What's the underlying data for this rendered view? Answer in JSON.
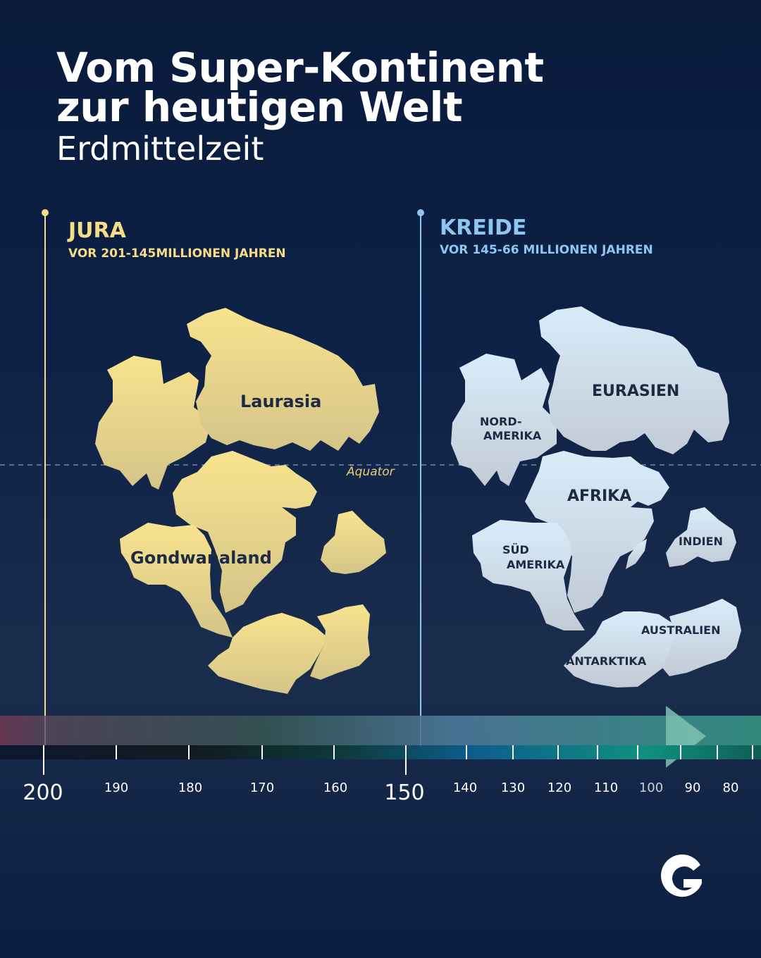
{
  "header": {
    "title_line1": "Vom Super-Kontinent",
    "title_line2": "zur heutigen Welt",
    "subtitle": "Erdmittelzeit"
  },
  "eras": {
    "jura": {
      "name": "JURA",
      "range": "VOR 201-145MILLIONEN JAHREN",
      "color": "#f6dc85",
      "labels": {
        "laurasia": "Laurasia",
        "gondwana": "Gondwanaland"
      }
    },
    "kreide": {
      "name": "KREIDE",
      "range": "VOR 145-66 MILLIONEN JAHREN",
      "color": "#8ec6ee",
      "labels": {
        "nordamerika_1": "NORD-",
        "nordamerika_2": "AMERIKA",
        "eurasien": "EURASIEN",
        "afrika": "AFRIKA",
        "suedamerika_1": "SÜD",
        "suedamerika_2": "AMERIKA",
        "indien": "INDIEN",
        "australien": "AUSTRALIEN",
        "antarktika": "ANTARKTIKA"
      }
    }
  },
  "equator_label": "Äquator",
  "timeline": {
    "major_ticks": [
      "200",
      "150"
    ],
    "minor_ticks": [
      "190",
      "180",
      "170",
      "160",
      "140",
      "130",
      "120",
      "110",
      "100",
      "90",
      "80"
    ]
  },
  "logo_icon": "g-logo-icon"
}
